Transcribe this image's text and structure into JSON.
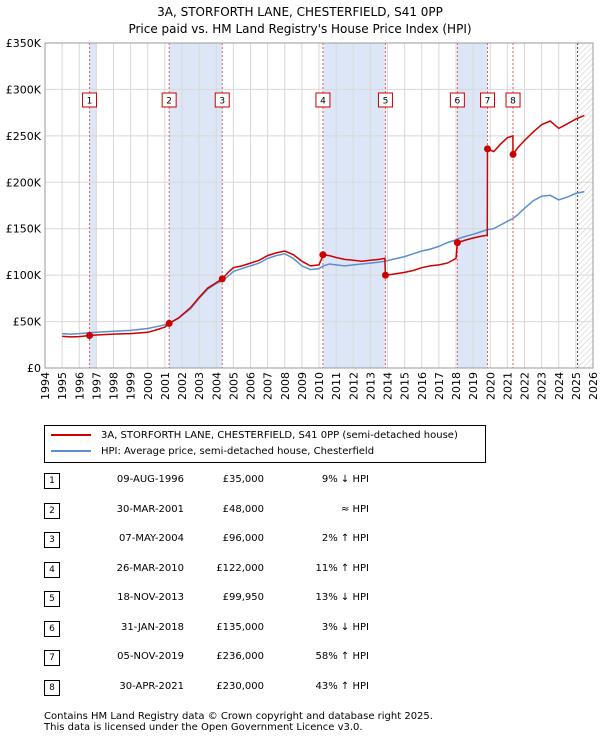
{
  "chart_data": {
    "type": "line",
    "title": "3A, STORFORTH LANE, CHESTERFIELD, S41 0PP",
    "subtitle": "Price paid vs. HM Land Registry's House Price Index (HPI)",
    "xlim": [
      1994,
      2026
    ],
    "ylim": [
      0,
      350000
    ],
    "x_ticks": [
      "1994",
      "1995",
      "1996",
      "1997",
      "1998",
      "1999",
      "2000",
      "2001",
      "2002",
      "2003",
      "2004",
      "2005",
      "2006",
      "2007",
      "2008",
      "2009",
      "2010",
      "2011",
      "2012",
      "2013",
      "2014",
      "2015",
      "2016",
      "2017",
      "2018",
      "2019",
      "2020",
      "2021",
      "2022",
      "2023",
      "2024",
      "2025",
      "2026"
    ],
    "y_ticks": [
      {
        "value": 0,
        "label": "£0"
      },
      {
        "value": 50000,
        "label": "£50K"
      },
      {
        "value": 100000,
        "label": "£100K"
      },
      {
        "value": 150000,
        "label": "£150K"
      },
      {
        "value": 200000,
        "label": "£200K"
      },
      {
        "value": 250000,
        "label": "£250K"
      },
      {
        "value": 300000,
        "label": "£300K"
      },
      {
        "value": 350000,
        "label": "£350K"
      }
    ],
    "colors": {
      "property": "#cc0000",
      "hpi": "#5b8fd0",
      "band": "#dde6f7",
      "grid": "#d8d8d8",
      "vline": "#e06060"
    },
    "bands": [
      [
        1996.6,
        1997.0
      ],
      [
        2001.25,
        2004.35
      ],
      [
        2010.25,
        2013.88
      ],
      [
        2018.08,
        2019.84
      ],
      [
        2021.33,
        2021.33
      ]
    ],
    "series": [
      {
        "name": "3A, STORFORTH LANE, CHESTERFIELD, S41 0PP (semi-detached house)",
        "color": "#cc0000",
        "points": [
          [
            1995.0,
            34000
          ],
          [
            1995.5,
            33500
          ],
          [
            1996.0,
            33800
          ],
          [
            1996.6,
            35000
          ],
          [
            1997.0,
            35500
          ],
          [
            1998.0,
            36500
          ],
          [
            1999.0,
            37000
          ],
          [
            2000.0,
            38500
          ],
          [
            2000.5,
            41000
          ],
          [
            2001.0,
            44000
          ],
          [
            2001.25,
            48000
          ],
          [
            2001.8,
            54000
          ],
          [
            2002.5,
            65000
          ],
          [
            2003.0,
            76000
          ],
          [
            2003.5,
            86000
          ],
          [
            2004.0,
            92000
          ],
          [
            2004.35,
            96000
          ],
          [
            2004.7,
            103000
          ],
          [
            2005.0,
            108000
          ],
          [
            2005.5,
            110000
          ],
          [
            2006.0,
            113000
          ],
          [
            2006.5,
            116000
          ],
          [
            2007.0,
            121000
          ],
          [
            2007.5,
            124000
          ],
          [
            2008.0,
            126000
          ],
          [
            2008.5,
            122000
          ],
          [
            2009.0,
            115000
          ],
          [
            2009.5,
            110000
          ],
          [
            2010.0,
            111000
          ],
          [
            2010.25,
            122000
          ],
          [
            2010.6,
            121000
          ],
          [
            2011.0,
            119000
          ],
          [
            2011.5,
            117000
          ],
          [
            2012.0,
            116000
          ],
          [
            2012.5,
            115000
          ],
          [
            2013.0,
            116000
          ],
          [
            2013.5,
            117000
          ],
          [
            2013.85,
            118000
          ],
          [
            2013.88,
            99950
          ],
          [
            2014.3,
            101000
          ],
          [
            2015.0,
            103000
          ],
          [
            2015.5,
            105000
          ],
          [
            2016.0,
            108000
          ],
          [
            2016.5,
            110000
          ],
          [
            2017.0,
            111000
          ],
          [
            2017.5,
            113000
          ],
          [
            2018.0,
            118000
          ],
          [
            2018.08,
            135000
          ],
          [
            2018.6,
            138000
          ],
          [
            2019.0,
            140000
          ],
          [
            2019.5,
            142000
          ],
          [
            2019.83,
            143000
          ],
          [
            2019.84,
            236000
          ],
          [
            2020.2,
            233000
          ],
          [
            2020.6,
            241000
          ],
          [
            2021.0,
            248000
          ],
          [
            2021.32,
            250000
          ],
          [
            2021.33,
            230000
          ],
          [
            2021.6,
            237000
          ],
          [
            2022.0,
            245000
          ],
          [
            2022.5,
            254000
          ],
          [
            2023.0,
            262000
          ],
          [
            2023.5,
            266000
          ],
          [
            2024.0,
            258000
          ],
          [
            2024.5,
            263000
          ],
          [
            2025.0,
            268000
          ],
          [
            2025.5,
            272000
          ]
        ]
      },
      {
        "name": "HPI: Average price, semi-detached house, Chesterfield",
        "color": "#5b8fd0",
        "points": [
          [
            1995.0,
            37000
          ],
          [
            1995.5,
            36500
          ],
          [
            1996.0,
            37000
          ],
          [
            1996.6,
            38000
          ],
          [
            1997.0,
            38500
          ],
          [
            1998.0,
            39500
          ],
          [
            1999.0,
            40500
          ],
          [
            2000.0,
            42500
          ],
          [
            2000.5,
            44500
          ],
          [
            2001.0,
            46500
          ],
          [
            2001.25,
            48000
          ],
          [
            2001.8,
            53500
          ],
          [
            2002.5,
            64000
          ],
          [
            2003.0,
            75000
          ],
          [
            2003.5,
            85000
          ],
          [
            2004.0,
            91000
          ],
          [
            2004.35,
            94000
          ],
          [
            2004.7,
            99000
          ],
          [
            2005.0,
            104000
          ],
          [
            2005.5,
            107000
          ],
          [
            2006.0,
            110000
          ],
          [
            2006.5,
            113000
          ],
          [
            2007.0,
            118000
          ],
          [
            2007.5,
            121000
          ],
          [
            2008.0,
            123000
          ],
          [
            2008.5,
            118000
          ],
          [
            2009.0,
            110000
          ],
          [
            2009.5,
            106000
          ],
          [
            2010.0,
            107000
          ],
          [
            2010.25,
            110000
          ],
          [
            2010.6,
            112000
          ],
          [
            2011.0,
            111000
          ],
          [
            2011.5,
            110000
          ],
          [
            2012.0,
            111000
          ],
          [
            2012.5,
            112000
          ],
          [
            2013.0,
            113000
          ],
          [
            2013.5,
            114000
          ],
          [
            2013.88,
            115000
          ],
          [
            2014.3,
            117000
          ],
          [
            2015.0,
            120000
          ],
          [
            2015.5,
            123000
          ],
          [
            2016.0,
            126000
          ],
          [
            2016.5,
            128000
          ],
          [
            2017.0,
            131000
          ],
          [
            2017.5,
            135000
          ],
          [
            2018.0,
            138000
          ],
          [
            2018.08,
            139000
          ],
          [
            2018.6,
            142000
          ],
          [
            2019.0,
            144000
          ],
          [
            2019.5,
            147000
          ],
          [
            2019.84,
            149000
          ],
          [
            2020.2,
            150000
          ],
          [
            2020.6,
            154000
          ],
          [
            2021.0,
            158000
          ],
          [
            2021.33,
            161000
          ],
          [
            2021.6,
            165000
          ],
          [
            2022.0,
            172000
          ],
          [
            2022.5,
            180000
          ],
          [
            2023.0,
            185000
          ],
          [
            2023.5,
            186000
          ],
          [
            2024.0,
            181000
          ],
          [
            2024.5,
            184000
          ],
          [
            2025.0,
            188000
          ],
          [
            2025.5,
            190000
          ]
        ]
      }
    ],
    "sales": [
      {
        "id": "1",
        "date": "09-AUG-1996",
        "x": 1996.6,
        "price": 35000,
        "price_label": "£35,000",
        "hpi": "9% ↓ HPI"
      },
      {
        "id": "2",
        "date": "30-MAR-2001",
        "x": 2001.25,
        "price": 48000,
        "price_label": "£48,000",
        "hpi": "≈ HPI"
      },
      {
        "id": "3",
        "date": "07-MAY-2004",
        "x": 2004.35,
        "price": 96000,
        "price_label": "£96,000",
        "hpi": "2% ↑ HPI"
      },
      {
        "id": "4",
        "date": "26-MAR-2010",
        "x": 2010.23,
        "price": 122000,
        "price_label": "£122,000",
        "hpi": "11% ↑ HPI"
      },
      {
        "id": "5",
        "date": "18-NOV-2013",
        "x": 2013.88,
        "price": 99950,
        "price_label": "£99,950",
        "hpi": "13% ↓ HPI"
      },
      {
        "id": "6",
        "date": "31-JAN-2018",
        "x": 2018.08,
        "price": 135000,
        "price_label": "£135,000",
        "hpi": "3% ↓ HPI"
      },
      {
        "id": "7",
        "date": "05-NOV-2019",
        "x": 2019.84,
        "price": 236000,
        "price_label": "£236,000",
        "hpi": "58% ↑ HPI"
      },
      {
        "id": "8",
        "date": "30-APR-2021",
        "x": 2021.33,
        "price": 230000,
        "price_label": "£230,000",
        "hpi": "43% ↑ HPI"
      }
    ]
  },
  "legend": {
    "property_label": "3A, STORFORTH LANE, CHESTERFIELD, S41 0PP (semi-detached house)",
    "hpi_label": "HPI: Average price, semi-detached house, Chesterfield"
  },
  "footer": {
    "line1": "Contains HM Land Registry data © Crown copyright and database right 2025.",
    "line2": "This data is licensed under the Open Government Licence v3.0."
  }
}
